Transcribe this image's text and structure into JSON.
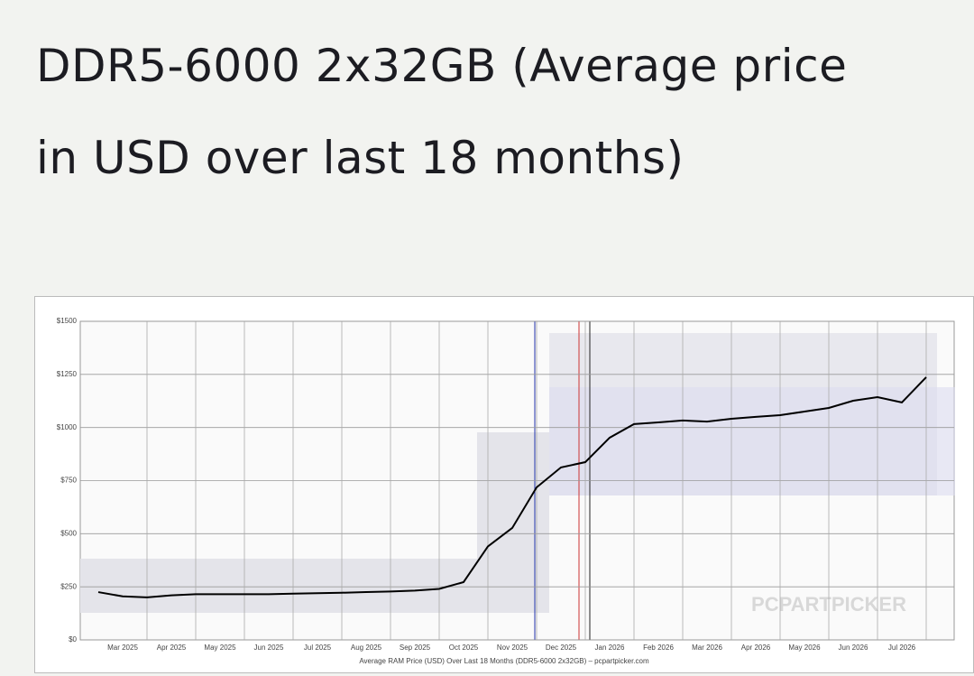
{
  "chart_data": {
    "type": "line",
    "title": "DDR5-6000 2x32GB (Average price in USD over last 18 months)",
    "xlabel": "Average RAM Price (USD) Over Last 18 Months (DDR5-6000 2x32GB) – pcpartpicker.com",
    "watermark": "PCPARTPICKER",
    "categories": [
      null,
      "Mar 2025",
      null,
      "Apr 2025",
      null,
      "May 2025",
      null,
      "Jun 2025",
      null,
      "Jul 2025",
      null,
      "Aug 2025",
      null,
      "Sep 2025",
      null,
      "Oct 2025",
      null,
      "Nov 2025",
      null,
      "Dec 2025",
      null,
      "Jan 2026",
      null,
      "Feb 2026",
      null,
      "Mar 2026",
      null,
      "Apr 2026",
      null,
      "May 2026",
      null,
      "Jun 2026",
      null,
      "Jul 2026",
      null
    ],
    "series": [
      {
        "name": "Average price",
        "color": "#000000",
        "values": [
          225,
          205,
          200,
          210,
          215,
          215,
          215,
          215,
          218,
          220,
          222,
          225,
          228,
          232,
          240,
          272,
          440,
          527,
          718,
          812,
          837,
          952,
          1016,
          1024,
          1033,
          1028,
          1041,
          1050,
          1058,
          1075,
          1092,
          1126,
          1143,
          1118,
          1237
        ]
      }
    ],
    "ylim": [
      0,
      1500
    ],
    "yticks": [
      {
        "value": 0,
        "label": "$0"
      },
      {
        "value": 250,
        "label": "$250"
      },
      {
        "value": 500,
        "label": "$500"
      },
      {
        "value": 750,
        "label": "$750"
      },
      {
        "value": 1000,
        "label": "$1000"
      },
      {
        "value": 1250,
        "label": "$1250"
      },
      {
        "value": 1500,
        "label": "$1500"
      }
    ],
    "grid": true
  }
}
